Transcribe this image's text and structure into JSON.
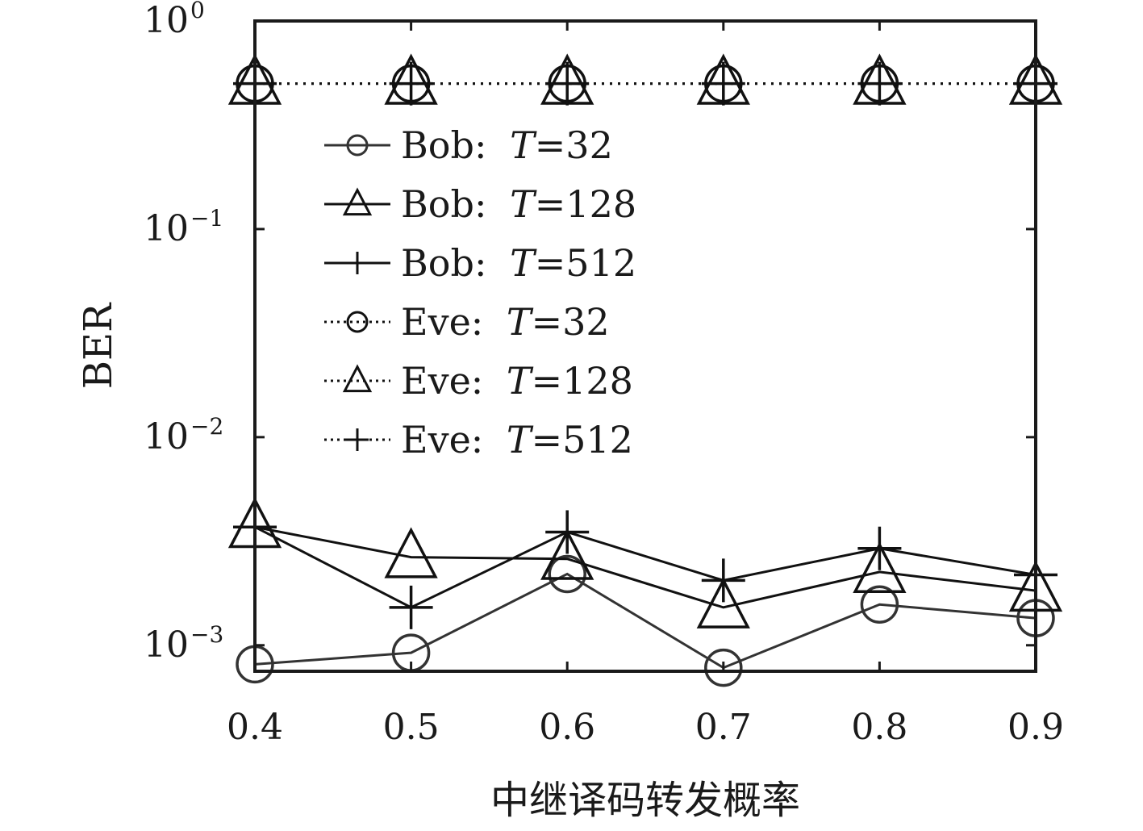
{
  "chart_data": {
    "type": "line",
    "xlabel": "中继译码转发概率",
    "ylabel": "BER",
    "yscale": "log",
    "xlim": [
      0.4,
      0.9
    ],
    "ylim": [
      0.00075,
      1
    ],
    "x_ticks": [
      0.4,
      0.5,
      0.6,
      0.7,
      0.8,
      0.9
    ],
    "x_tick_labels": [
      "0.4",
      "0.5",
      "0.6",
      "0.7",
      "0.8",
      "0.9"
    ],
    "y_ticks": [
      {
        "value": 1,
        "base": "10",
        "exp": "0"
      },
      {
        "value": 0.1,
        "base": "10",
        "exp": "−1"
      },
      {
        "value": 0.01,
        "base": "10",
        "exp": "−2"
      },
      {
        "value": 0.001,
        "base": "10",
        "exp": "−3"
      }
    ],
    "grid": false,
    "legend_position": "top-left",
    "x": [
      0.4,
      0.5,
      0.6,
      0.7,
      0.8,
      0.9
    ],
    "series": [
      {
        "name": "Bob:",
        "param": "T",
        "eq": "=32",
        "marker": "circle",
        "style": "solid",
        "color": "#333333",
        "values": [
          0.00081,
          0.00092,
          0.0022,
          0.00078,
          0.00157,
          0.00135
        ]
      },
      {
        "name": "Bob:",
        "param": "T",
        "eq": "=128",
        "marker": "triangle",
        "style": "solid",
        "color": "#111111",
        "values": [
          0.0037,
          0.00265,
          0.0026,
          0.00152,
          0.00225,
          0.00183
        ]
      },
      {
        "name": "Bob:",
        "param": "T",
        "eq": "=512",
        "marker": "plus",
        "style": "solid",
        "color": "#111111",
        "values": [
          0.0037,
          0.00152,
          0.0035,
          0.00205,
          0.00292,
          0.00218
        ]
      },
      {
        "name": "Eve:",
        "param": "T",
        "eq": "=32",
        "marker": "circle",
        "style": "dotted",
        "color": "#111111",
        "values": [
          0.5,
          0.5,
          0.5,
          0.5,
          0.5,
          0.5
        ]
      },
      {
        "name": "Eve:",
        "param": "T",
        "eq": "=128",
        "marker": "triangle",
        "style": "dotted",
        "color": "#111111",
        "values": [
          0.5,
          0.5,
          0.5,
          0.5,
          0.5,
          0.5
        ]
      },
      {
        "name": "Eve:",
        "param": "T",
        "eq": "=512",
        "marker": "plus",
        "style": "dotted",
        "color": "#111111",
        "values": [
          0.5,
          0.5,
          0.5,
          0.5,
          0.5,
          0.5
        ]
      }
    ]
  }
}
